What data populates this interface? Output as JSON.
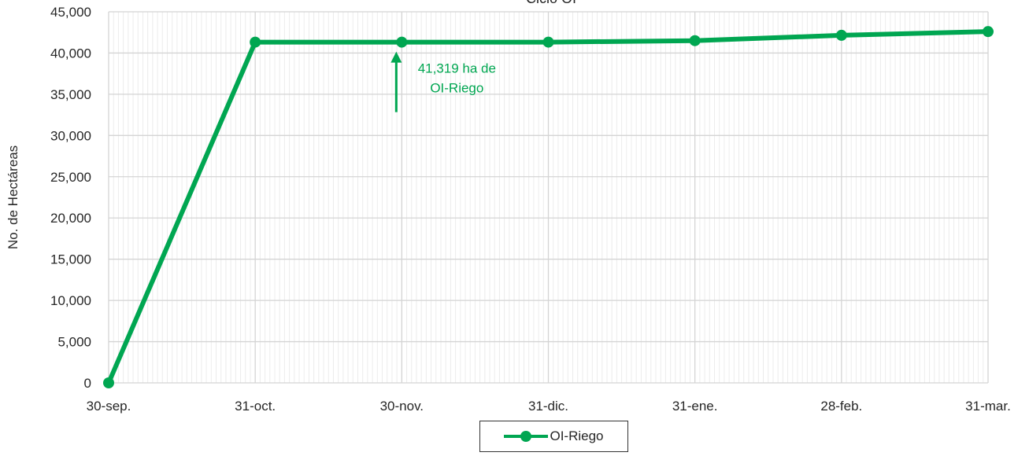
{
  "chart_data": {
    "type": "line",
    "title": "Ciclo OI",
    "xlabel": "",
    "ylabel": "No. de Hectáreas",
    "categories": [
      "30-sep.",
      "31-oct.",
      "30-nov.",
      "31-dic.",
      "31-ene.",
      "28-feb.",
      "31-mar."
    ],
    "series": [
      {
        "name": "OI-Riego",
        "values": [
          0,
          41319,
          41319,
          41319,
          41500,
          42150,
          42600
        ],
        "color": "#00a651"
      }
    ],
    "ylim": [
      0,
      45000
    ],
    "yticks": [
      0,
      5000,
      10000,
      15000,
      20000,
      25000,
      30000,
      35000,
      40000,
      45000
    ],
    "ytick_labels": [
      "0",
      "5,000",
      "10,000",
      "15,000",
      "20,000",
      "25,000",
      "30,000",
      "35,000",
      "40,000",
      "45,000"
    ],
    "grid": true,
    "legend_position": "bottom",
    "annotation": {
      "text_line1": "41,319 ha de",
      "text_line2": "OI-Riego",
      "category_index": 2,
      "arrow_direction": "up"
    }
  }
}
